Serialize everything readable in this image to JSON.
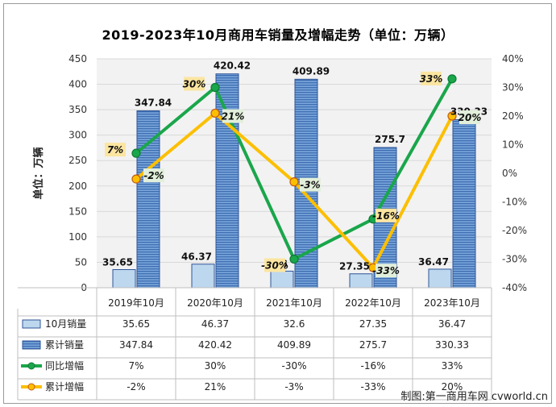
{
  "title": "2019-2023年10月商用车销量及增幅走势（单位：万辆）",
  "source": "制图:第一商用车网 cvworld.cn",
  "chart_data": {
    "type": "bar",
    "categories": [
      "2019年10月",
      "2020年10月",
      "2021年10月",
      "2022年10月",
      "2023年10月"
    ],
    "ylabel": "单位：万辆",
    "ylim": [
      0,
      450
    ],
    "y_ticks": [
      "0",
      "50",
      "100",
      "150",
      "200",
      "250",
      "300",
      "350",
      "400",
      "450"
    ],
    "y2lim": [
      -40,
      40
    ],
    "y2_ticks": [
      "-40%",
      "-30%",
      "-20%",
      "-10%",
      "0%",
      "10%",
      "20%",
      "30%",
      "40%"
    ],
    "grid": true,
    "series": [
      {
        "name": "10月销量",
        "kind": "bar",
        "axis": "left",
        "color": "#bdd7ee",
        "values": [
          35.65,
          46.37,
          32.6,
          27.35,
          36.47
        ],
        "display": [
          "35.65",
          "46.37",
          "32.6",
          "27.35",
          "36.47"
        ]
      },
      {
        "name": "累计销量",
        "kind": "bar",
        "axis": "left",
        "color": "#4f81bd",
        "values": [
          347.84,
          420.42,
          409.89,
          275.7,
          330.33
        ],
        "display": [
          "347.84",
          "420.42",
          "409.89",
          "275.7",
          "330.33"
        ]
      },
      {
        "name": "同比增幅",
        "kind": "line",
        "axis": "right",
        "color": "#1aa64b",
        "values": [
          7,
          30,
          -30,
          -16,
          33
        ],
        "display": [
          "7%",
          "30%",
          "-30%",
          "-16%",
          "33%"
        ]
      },
      {
        "name": "累计增幅",
        "kind": "line",
        "axis": "right",
        "color": "#fcbf00",
        "values": [
          -2,
          21,
          -3,
          -33,
          20
        ],
        "display": [
          "-2%",
          "21%",
          "-3%",
          "-33%",
          "20%"
        ]
      }
    ]
  }
}
